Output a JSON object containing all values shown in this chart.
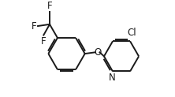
{
  "bg_color": "#ffffff",
  "line_color": "#1a1a1a",
  "line_width": 1.4,
  "font_size": 8.5,
  "figsize": [
    2.22,
    1.23
  ],
  "dpi": 100,
  "xlim": [
    0.0,
    10.0
  ],
  "ylim": [
    0.5,
    5.5
  ]
}
